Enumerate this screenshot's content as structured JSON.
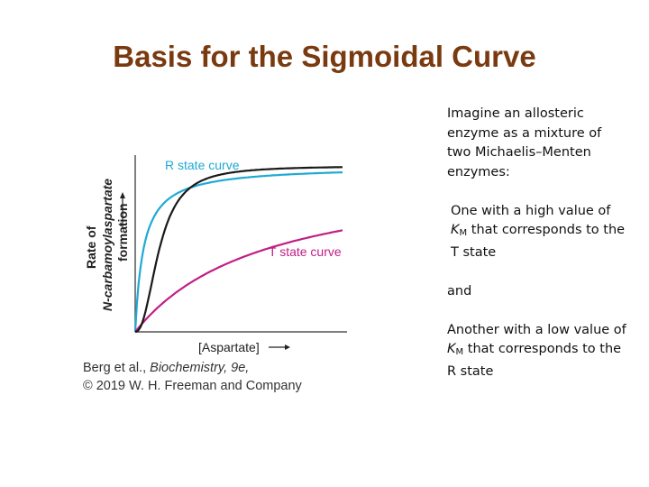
{
  "slide": {
    "title": "Basis for the Sigmoidal Curve"
  },
  "chart_data": {
    "type": "line",
    "xlabel": "[Aspartate]",
    "ylabel_line1": "Rate of",
    "ylabel_line2": "N-carbamoylaspartate",
    "ylabel_line3": "formation",
    "series": [
      {
        "name": "R state curve",
        "color": "#1fa9d4",
        "Vmax": 1.0,
        "K": 0.12,
        "n": 1
      },
      {
        "name": "T state curve",
        "color": "#c01f86",
        "Vmax": 1.0,
        "K": 1.9,
        "n": 1
      },
      {
        "name": "",
        "color": "#1a1a1a",
        "Vmax": 1.0,
        "K": 0.35,
        "n": 2.3
      }
    ]
  },
  "credit": {
    "line1_prefix": "Berg et al., ",
    "line1_italic": "Biochemistry, 9e,",
    "line2": "© 2019 W. H. Freeman and Company"
  },
  "text": {
    "p1": "Imagine an allosteric enzyme as a mixture of two Michaelis–Menten enzymes:",
    "p2_prefix": "One with a high value of ",
    "p2_suffix": " that corresponds to the T state",
    "p3": "and",
    "p4_prefix": "Another with a low value of ",
    "p4_suffix": " that corresponds to the R state",
    "km_k": "K",
    "km_sub": "M"
  },
  "colors": {
    "title": "#7a3a10",
    "r_state": "#1fa9d4",
    "t_state": "#c01f86",
    "overall": "#1a1a1a"
  }
}
